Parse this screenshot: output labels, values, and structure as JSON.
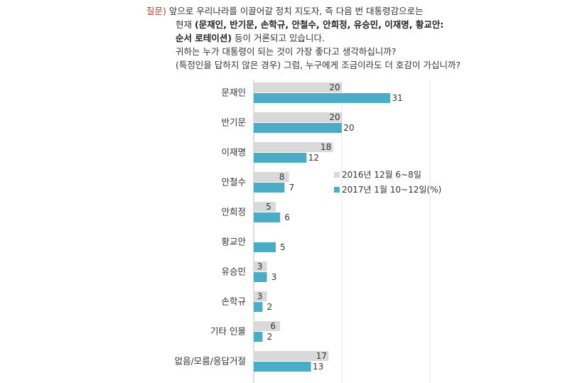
{
  "question": {
    "label": "질문)",
    "line1": "앞으로 우리나라를 이끌어갈 정치 지도자, 즉 다음 번 대통령감으로는",
    "line2_prefix": "현재 ",
    "line2_bold": "(문재인, 반기문, 손학규, 안철수, 안희정, 유승민, 이재명, 황교안:",
    "line3_bold": "순서 로테이션)",
    "line3_suffix": " 등이 거론되고 있습니다.",
    "line4": "귀하는 누가 대통령이 되는 것이 가장 좋다고 생각하십니까?",
    "line5": "(특정인을 답하지 않은 경우) 그럼, 누구에게 조금이라도 더 호감이 가십니까?"
  },
  "chart_data": {
    "type": "bar",
    "orientation": "horizontal",
    "categories": [
      "문재인",
      "반기문",
      "이재명",
      "안철수",
      "안희정",
      "황교안",
      "유승민",
      "손학규",
      "기타 인물",
      "없음/모름/응답거절"
    ],
    "series": [
      {
        "name": "2016년 12월 6~8일",
        "color": "#d9d9d9",
        "values": [
          20,
          20,
          18,
          8,
          5,
          null,
          3,
          3,
          6,
          17
        ]
      },
      {
        "name": "2017년 1월 10~12일(%)",
        "color": "#4bacc6",
        "values": [
          31,
          20,
          12,
          7,
          6,
          5,
          3,
          2,
          2,
          13
        ]
      }
    ],
    "xlim": [
      0,
      40
    ],
    "grid": true,
    "legend_position": "right-middle"
  }
}
